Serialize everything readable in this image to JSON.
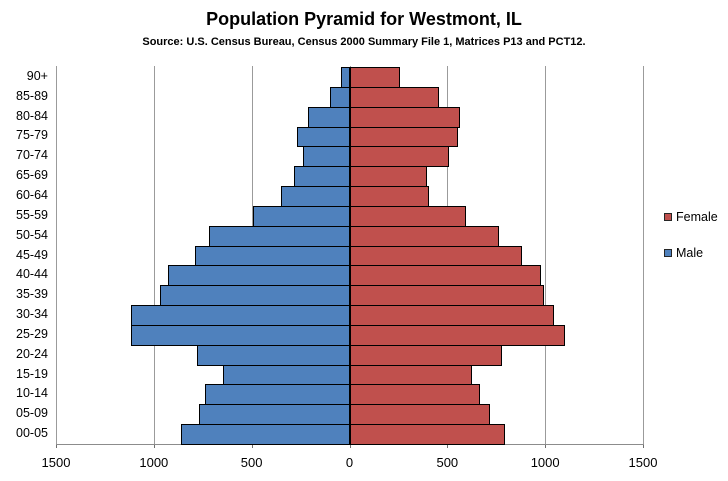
{
  "title": "Population Pyramid for Westmont, IL",
  "subtitle": "Source: U.S. Census Bureau, Census 2000 Summary File 1, Matrices P13 and PCT12.",
  "chart_data": {
    "type": "bar",
    "variant": "population-pyramid",
    "orientation": "horizontal",
    "categories": [
      "90+",
      "85-89",
      "80-84",
      "75-79",
      "70-74",
      "65-69",
      "60-64",
      "55-59",
      "50-54",
      "45-49",
      "40-44",
      "35-39",
      "30-34",
      "25-29",
      "20-24",
      "15-19",
      "10-14",
      "05-09",
      "00-05"
    ],
    "series": [
      {
        "name": "Male",
        "side": "left",
        "color": "#4F81BD",
        "values": [
          45,
          100,
          210,
          270,
          240,
          285,
          350,
          495,
          720,
          790,
          930,
          970,
          1115,
          1115,
          780,
          645,
          740,
          770,
          860
        ]
      },
      {
        "name": "Female",
        "side": "right",
        "color": "#C0504D",
        "values": [
          255,
          450,
          560,
          550,
          505,
          390,
          400,
          590,
          760,
          875,
          975,
          990,
          1040,
          1095,
          775,
          620,
          660,
          715,
          790
        ]
      }
    ],
    "x_axis": {
      "min": -1500,
      "max": 1500,
      "tick_interval": 500,
      "tick_labels": [
        "1500",
        "1000",
        "500",
        "0",
        "500",
        "1000",
        "1500"
      ]
    },
    "grid": true,
    "gridline_color": "#9b9b9b",
    "bar_border_color": "#000000",
    "legend": {
      "position": "right",
      "entries": [
        {
          "label": "Female",
          "color": "#C0504D"
        },
        {
          "label": "Male",
          "color": "#4F81BD"
        }
      ]
    }
  }
}
